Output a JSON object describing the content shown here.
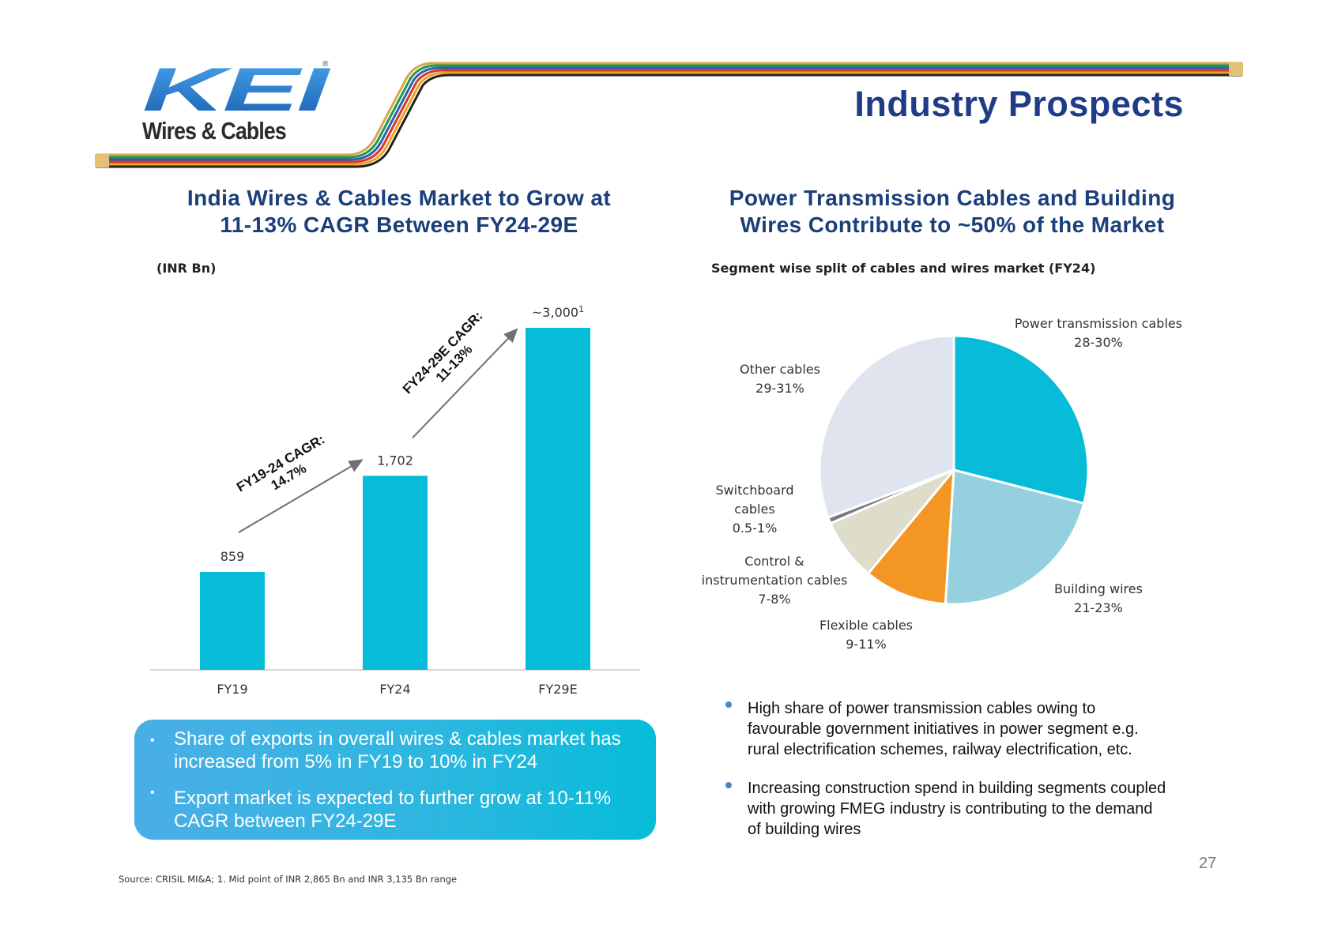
{
  "brand": {
    "logo_text": "KEI",
    "logo_registered": "®",
    "subtitle": "Wires & Cables",
    "colors": {
      "logo_blue": "#1e6fc0",
      "title_blue": "#1f3c88",
      "bar_cyan": "#06bcd9"
    }
  },
  "page_title": "Industry Prospects",
  "left_section": {
    "title_line1": "India Wires & Cables Market to Grow at",
    "title_line2": "11-13% CAGR Between FY24-29E",
    "unit_label": "(INR Bn)"
  },
  "right_section": {
    "title_line1": "Power Transmission Cables and Building",
    "title_line2": "Wires Contribute to ~50% of the Market",
    "subtitle": "Segment wise split of cables and wires market (FY24)"
  },
  "chart_data": [
    {
      "type": "bar",
      "title": "India Wires & Cables Market to Grow at 11-13% CAGR Between FY24-29E",
      "ylabel": "(INR Bn)",
      "categories": [
        "FY19",
        "FY24",
        "FY29E"
      ],
      "values": [
        859,
        1702,
        3000
      ],
      "data_labels": [
        "859",
        "1,702",
        "~3,000"
      ],
      "footnote_marker": "1",
      "ylim": [
        0,
        3000
      ],
      "color": "#06bcd9",
      "annotations": [
        {
          "line1": "FY19-24 CAGR:",
          "line2": "14.7%",
          "from": "FY19",
          "to": "FY24"
        },
        {
          "line1": "FY24-29E CAGR:",
          "line2": "11-13%",
          "from": "FY24",
          "to": "FY29E"
        }
      ]
    },
    {
      "type": "pie",
      "title": "Segment wise split of cables and wires market (FY24)",
      "slices": [
        {
          "name": "Power transmission cables",
          "range": "28-30%",
          "value": 29,
          "color": "#07bcd9",
          "label_lines": [
            "Power transmission cables",
            "28-30%"
          ]
        },
        {
          "name": "Building wires",
          "range": "21-23%",
          "value": 22,
          "color": "#95d0df",
          "label_lines": [
            "Building wires",
            "21-23%"
          ]
        },
        {
          "name": "Flexible cables",
          "range": "9-11%",
          "value": 10,
          "color": "#f49623",
          "label_lines": [
            "Flexible cables",
            "9-11%"
          ]
        },
        {
          "name": "Control & instrumentation cables",
          "range": "7-8%",
          "value": 7.5,
          "color": "#deddca",
          "label_lines": [
            "Control &",
            "instrumentation cables",
            "7-8%"
          ]
        },
        {
          "name": "Switchboard cables",
          "range": "0.5-1%",
          "value": 0.75,
          "color": "#7a7b80",
          "label_lines": [
            "Switchboard",
            "cables",
            "0.5-1%"
          ]
        },
        {
          "name": "Other cables",
          "range": "29-31%",
          "value": 30.75,
          "color": "#dfe4ef",
          "label_lines": [
            "Other cables",
            "29-31%"
          ]
        }
      ]
    }
  ],
  "export_box": {
    "items": [
      {
        "bullet": "•",
        "line1": "Share of exports in overall wires & cables market has",
        "line2": "increased from 5% in FY19 to 10% in FY24"
      },
      {
        "bullet": "•",
        "line1": "Export market is expected to further grow at 10-11%",
        "line2": "CAGR between FY24-29E"
      }
    ]
  },
  "right_bullets": [
    {
      "line1": "High share of power transmission cables owing to",
      "line2": "favourable government initiatives in power segment e.g.",
      "line3": "rural electrification schemes, railway electrification, etc."
    },
    {
      "line1": "Increasing construction spend in building segments coupled",
      "line2": "with growing FMEG industry is contributing to the demand",
      "line3": "of building wires"
    }
  ],
  "page_number": "27",
  "source_note": "Source: CRISIL MI&A; 1. Mid point of INR 2,865 Bn and INR 3,135 Bn range"
}
